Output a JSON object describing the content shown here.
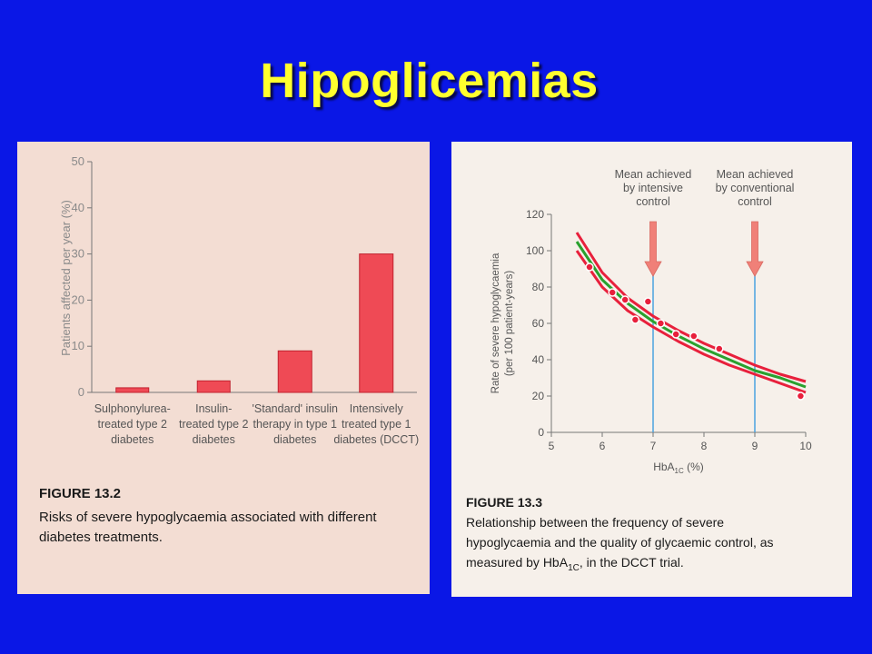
{
  "slide": {
    "title": "Hipoglicemias"
  },
  "chart_data": [
    {
      "type": "bar",
      "figure_label": "FIGURE 13.2",
      "caption_lines": [
        "Risks of severe hypoglycaemia associated with different",
        "diabetes treatments."
      ],
      "ylabel": "Patients affected per year (%)",
      "ylim": [
        0,
        50
      ],
      "yticks": [
        0,
        10,
        20,
        30,
        40,
        50
      ],
      "categories": [
        [
          "Sulphonylurea-",
          "treated type 2",
          "diabetes"
        ],
        [
          "Insulin-",
          "treated type 2",
          "diabetes"
        ],
        [
          "'Standard' insulin",
          "therapy in type 1",
          "diabetes"
        ],
        [
          "Intensively",
          "treated type 1",
          "diabetes (DCCT)"
        ]
      ],
      "values": [
        1,
        2.5,
        9,
        30
      ],
      "bar_color": "#ef4a55",
      "grid": false
    },
    {
      "type": "line",
      "figure_label": "FIGURE 13.3",
      "caption_lines": [
        "Relationship between the frequency of severe",
        "hypoglycaemia and the quality of glycaemic control, as"
      ],
      "caption_last": {
        "before": "measured by HbA",
        "sub": "1C",
        "after": ", in the DCCT trial."
      },
      "ylabel_lines": [
        "Rate of severe hypoglycaemia",
        "(per 100 patient-years)"
      ],
      "xlabel": {
        "main": "HbA",
        "sub": "1C",
        "unit": " (%)"
      },
      "xlim": [
        5,
        10
      ],
      "ylim": [
        0,
        120
      ],
      "xticks": [
        5,
        6,
        7,
        8,
        9,
        10
      ],
      "yticks": [
        0,
        20,
        40,
        60,
        80,
        100,
        120
      ],
      "grid": false,
      "series": [
        {
          "color": "#e8203c",
          "x": [
            5.5,
            6,
            6.5,
            7,
            7.5,
            8,
            8.5,
            9,
            9.5,
            10
          ],
          "y": [
            110,
            88,
            74,
            64,
            56,
            49,
            43,
            37,
            32,
            28
          ]
        },
        {
          "color": "#29a12e",
          "x": [
            5.5,
            6,
            6.5,
            7,
            7.5,
            8,
            8.5,
            9,
            9.5,
            10
          ],
          "y": [
            105,
            84,
            71,
            61,
            53,
            46,
            40,
            34,
            30,
            25
          ]
        },
        {
          "color": "#e8203c",
          "x": [
            5.5,
            6,
            6.5,
            7,
            7.5,
            8,
            8.5,
            9,
            9.5,
            10
          ],
          "y": [
            100,
            80,
            67,
            58,
            50,
            43,
            37,
            32,
            27,
            22
          ]
        }
      ],
      "points": {
        "color": "#e8203c",
        "x": [
          5.75,
          6.2,
          6.45,
          6.65,
          6.9,
          7.15,
          7.45,
          7.8,
          8.3,
          9.9
        ],
        "y": [
          91,
          77,
          73,
          62,
          72,
          60,
          54,
          53,
          46,
          20
        ]
      },
      "markers": [
        {
          "x": 7,
          "lines": [
            "Mean achieved",
            "by intensive",
            "control"
          ]
        },
        {
          "x": 9,
          "lines": [
            "Mean achieved",
            "by conventional",
            "control"
          ]
        }
      ],
      "marker_line_color": "#4aa3df",
      "marker_arrow_color": "#f08078"
    }
  ]
}
